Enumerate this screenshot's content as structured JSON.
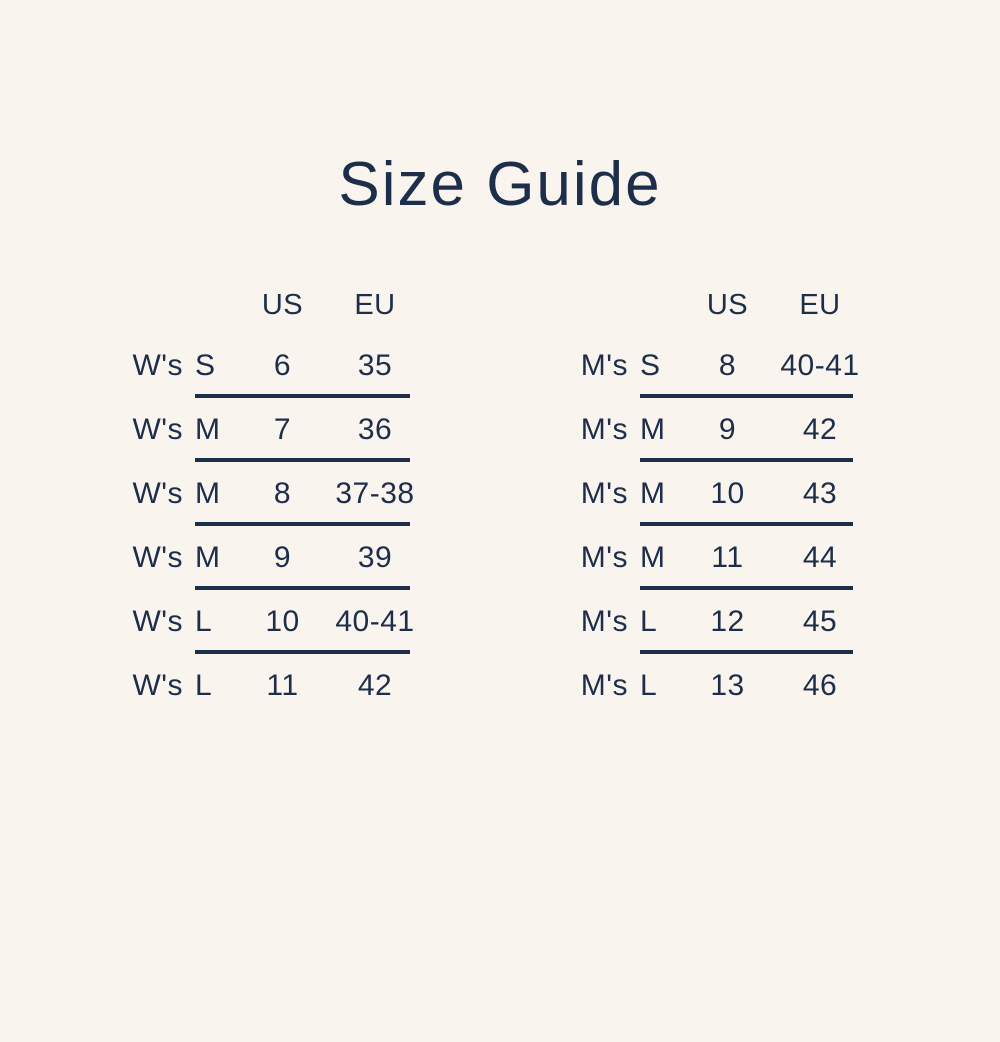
{
  "title": "Size Guide",
  "colors": {
    "background": "#FAF4EE",
    "text": "#1C2E49",
    "rule": "#1C2E49"
  },
  "tables": [
    {
      "id": "womens",
      "headers": {
        "us": "US",
        "eu": "EU"
      },
      "rows": [
        {
          "group": "W's",
          "size": "S",
          "us": "6",
          "eu": "35"
        },
        {
          "group": "W's",
          "size": "M",
          "us": "7",
          "eu": "36"
        },
        {
          "group": "W's",
          "size": "M",
          "us": "8",
          "eu": "37-38"
        },
        {
          "group": "W's",
          "size": "M",
          "us": "9",
          "eu": "39"
        },
        {
          "group": "W's",
          "size": "L",
          "us": "10",
          "eu": "40-41"
        },
        {
          "group": "W's",
          "size": "L",
          "us": "11",
          "eu": "42"
        }
      ]
    },
    {
      "id": "mens",
      "headers": {
        "us": "US",
        "eu": "EU"
      },
      "rows": [
        {
          "group": "M's",
          "size": "S",
          "us": "8",
          "eu": "40-41"
        },
        {
          "group": "M's",
          "size": "M",
          "us": "9",
          "eu": "42"
        },
        {
          "group": "M's",
          "size": "M",
          "us": "10",
          "eu": "43"
        },
        {
          "group": "M's",
          "size": "M",
          "us": "11",
          "eu": "44"
        },
        {
          "group": "M's",
          "size": "L",
          "us": "12",
          "eu": "45"
        },
        {
          "group": "M's",
          "size": "L",
          "us": "13",
          "eu": "46"
        }
      ]
    }
  ]
}
